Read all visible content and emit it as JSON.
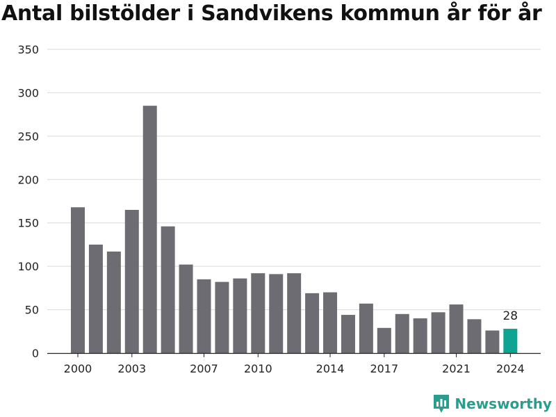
{
  "chart_data": {
    "type": "bar",
    "title": "Antal bilstölder i Sandvikens kommun år för år",
    "xlabel": "",
    "ylabel": "",
    "ylim": [
      0,
      350
    ],
    "yticks": [
      0,
      50,
      100,
      150,
      200,
      250,
      300,
      350
    ],
    "x": [
      2000,
      2001,
      2002,
      2003,
      2004,
      2005,
      2006,
      2007,
      2008,
      2009,
      2010,
      2011,
      2012,
      2013,
      2014,
      2015,
      2016,
      2017,
      2018,
      2019,
      2020,
      2021,
      2022,
      2023,
      2024
    ],
    "values": [
      168,
      125,
      117,
      165,
      285,
      146,
      102,
      85,
      82,
      86,
      92,
      91,
      92,
      69,
      70,
      44,
      57,
      29,
      45,
      40,
      47,
      56,
      39,
      26,
      28
    ],
    "xtick_labels": [
      "2000",
      "2003",
      "2007",
      "2010",
      "2014",
      "2017",
      "2021",
      "2024"
    ],
    "highlight": {
      "x": 2024,
      "label": "28"
    },
    "grid": true,
    "colors": {
      "bar": "#6d6c72",
      "highlight": "#0fa391",
      "grid": "#d9d9d9"
    }
  },
  "brand": {
    "name": "Newsworthy",
    "color": "#2a9d8f"
  }
}
